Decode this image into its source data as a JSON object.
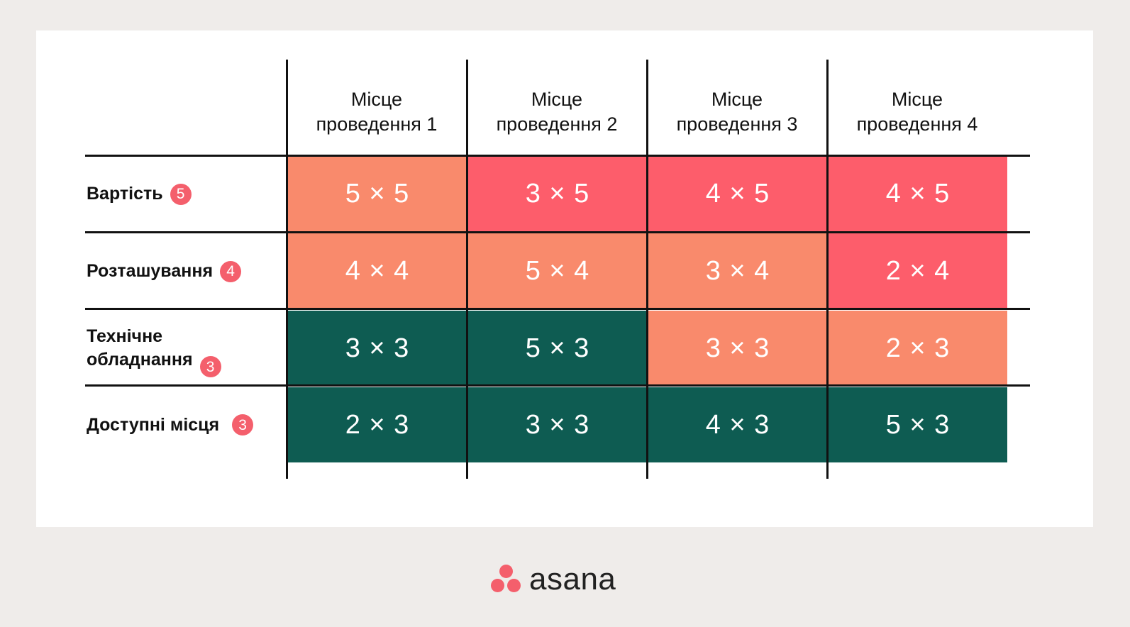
{
  "columns": [
    "Місце\nпроведення 1",
    "Місце\nпроведення 2",
    "Місце\nпроведення 3",
    "Місце\nпроведення 4"
  ],
  "rows": [
    {
      "label": "Вартість",
      "weight": "5",
      "cells": [
        {
          "text": "5 × 5",
          "color": "orange"
        },
        {
          "text": "3 × 5",
          "color": "red"
        },
        {
          "text": "4 × 5",
          "color": "red"
        },
        {
          "text": "4 × 5",
          "color": "red"
        }
      ]
    },
    {
      "label": "Розташування",
      "weight": "4",
      "cells": [
        {
          "text": "4 × 4",
          "color": "orange"
        },
        {
          "text": "5 × 4",
          "color": "orange"
        },
        {
          "text": "3 × 4",
          "color": "orange"
        },
        {
          "text": "2 × 4",
          "color": "red"
        }
      ]
    },
    {
      "label": "Технічне\nобладнання",
      "weight": "3",
      "cells": [
        {
          "text": "3 × 3",
          "color": "green"
        },
        {
          "text": "5 × 3",
          "color": "green"
        },
        {
          "text": "3 × 3",
          "color": "orange"
        },
        {
          "text": "2 × 3",
          "color": "orange"
        }
      ]
    },
    {
      "label": "Доступні місця",
      "weight": "3",
      "cells": [
        {
          "text": "2 × 3",
          "color": "green"
        },
        {
          "text": "3 × 3",
          "color": "green"
        },
        {
          "text": "4 × 3",
          "color": "green"
        },
        {
          "text": "5 × 3",
          "color": "green"
        }
      ]
    }
  ],
  "colors": {
    "orange": "#f98a6c",
    "red": "#fd5d6b",
    "green": "#0e5c52",
    "badge": "#f45f6c"
  },
  "logo": {
    "wordmark": "asana",
    "icon": "asana-dots-icon"
  }
}
